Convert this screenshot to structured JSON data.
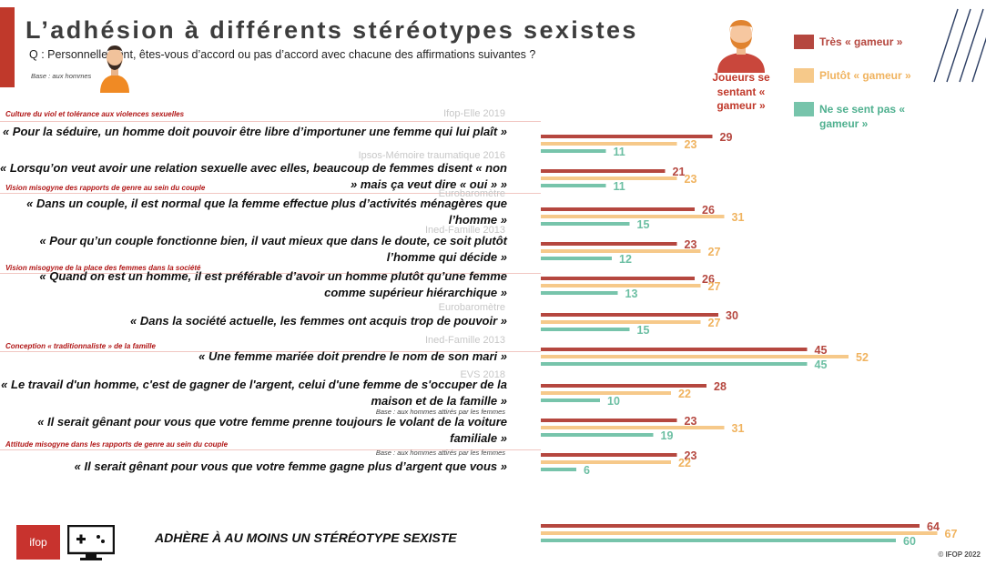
{
  "header": {
    "title": "L’adhésion à différents stéréotypes sexistes",
    "question": "Q : Personnellement, êtes-vous d’accord ou pas d’accord avec chacune des affirmations suivantes ?",
    "base": "Base : aux hommes"
  },
  "legend": {
    "header": "Joueurs se sentant « gameur »",
    "items": [
      {
        "label": "Très « gameur »",
        "color": "#b5473f"
      },
      {
        "label": "Plutôt « gameur »",
        "color": "#f6c98a"
      },
      {
        "label": "Ne se sent pas « gameur »",
        "color": "#77c4ab"
      }
    ]
  },
  "categories": [
    "Culture du viol et tolérance aux violences sexuelles",
    "Vision misogyne des rapports de genre au sein du couple",
    "Vision misogyne de la place des femmes dans la société",
    "Conception « traditionnaliste » de la famille",
    "Attitude misogyne dans les rapports de genre au sein du couple"
  ],
  "sources": [
    "Ifop-Elle 2019",
    "Ipsos-Mémoire traumatique 2016",
    "Eurobaromètre",
    "Ined-Famille 2013",
    "Eurobaromètre",
    "Ined-Famille 2013",
    "EVS 2018"
  ],
  "subbase": "Base : aux hommes attirés par les femmes",
  "summary_label": "ADHÈRE À AU MOINS UN STÉRÉOTYPE SEXISTE",
  "logo": "ifop",
  "copyright": "© IFOP 2022",
  "chart_data": {
    "type": "bar",
    "orientation": "horizontal",
    "categories": [
      "« Pour la séduire, un homme doit pouvoir être libre d’importuner une femme qui lui plaît »",
      "« Lorsqu’on veut avoir une relation sexuelle avec elles, beaucoup de femmes disent « non » mais ça veut dire « oui » »",
      "« Dans un couple, il est normal que la femme effectue plus d’activités ménagères que l’homme »",
      "« Pour qu’un couple fonctionne bien, il vaut mieux que dans le doute, ce soit plutôt l’homme qui décide »",
      "« Quand on est un homme, il est préférable d’avoir un homme plutôt qu’une femme comme supérieur hiérarchique »",
      "« Dans la société actuelle, les femmes ont acquis trop de pouvoir »",
      "« Une femme mariée doit prendre le nom de son mari »",
      "« Le travail d'un homme, c'est de gagner de l'argent, celui d'une femme de s'occuper de la maison et de la famille »",
      "« Il serait gênant pour vous que votre femme prenne toujours le volant de la voiture familiale »",
      "« Il serait gênant pour vous que votre femme gagne plus d’argent que vous »",
      "ADHÈRE À AU MOINS UN STÉRÉOTYPE SEXISTE"
    ],
    "series": [
      {
        "name": "Très « gameur »",
        "values": [
          29,
          21,
          26,
          23,
          26,
          30,
          45,
          28,
          23,
          23,
          64
        ]
      },
      {
        "name": "Plutôt « gameur »",
        "values": [
          23,
          23,
          31,
          27,
          27,
          27,
          52,
          22,
          31,
          22,
          67
        ]
      },
      {
        "name": "Ne se sent pas « gameur »",
        "values": [
          11,
          11,
          15,
          12,
          13,
          15,
          45,
          10,
          19,
          6,
          60
        ]
      }
    ],
    "unit": "%",
    "xlim": [
      0,
      100
    ]
  }
}
